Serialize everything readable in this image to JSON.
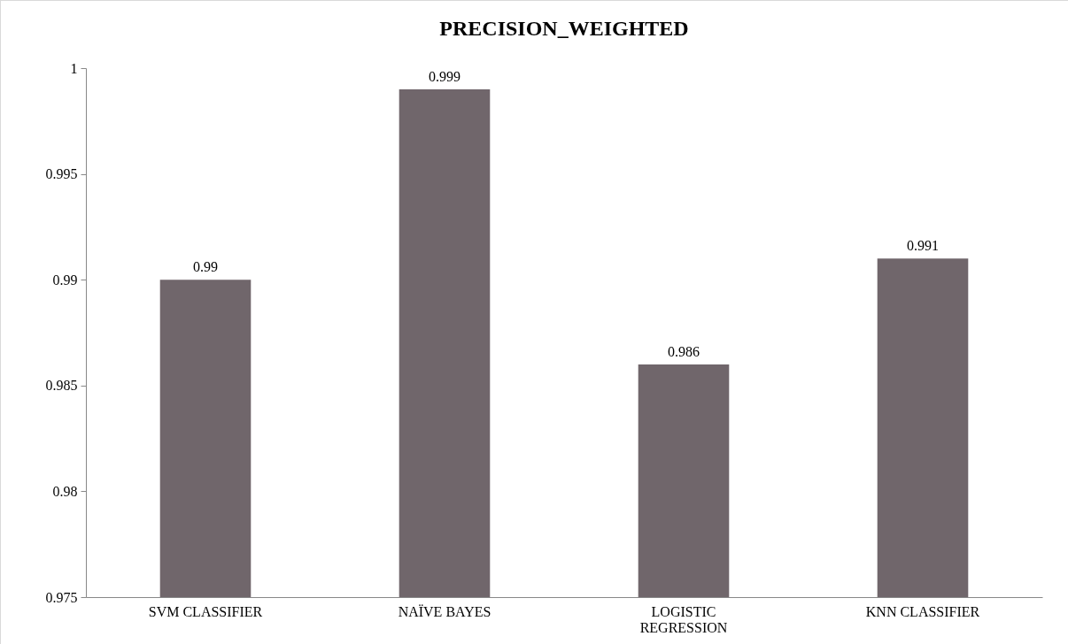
{
  "chart_data": {
    "type": "bar",
    "title": "PRECISION_WEIGHTED",
    "categories": [
      "SVM CLASSIFIER",
      "NAÏVE BAYES",
      "LOGISTIC REGRESSION",
      "KNN CLASSIFIER"
    ],
    "values": [
      0.99,
      0.999,
      0.986,
      0.991
    ],
    "color": "#70666b",
    "ylim": [
      0.975,
      1
    ],
    "yticks": [
      0.975,
      0.98,
      0.985,
      0.99,
      0.995,
      1
    ],
    "grid": false,
    "data_labels": true
  }
}
